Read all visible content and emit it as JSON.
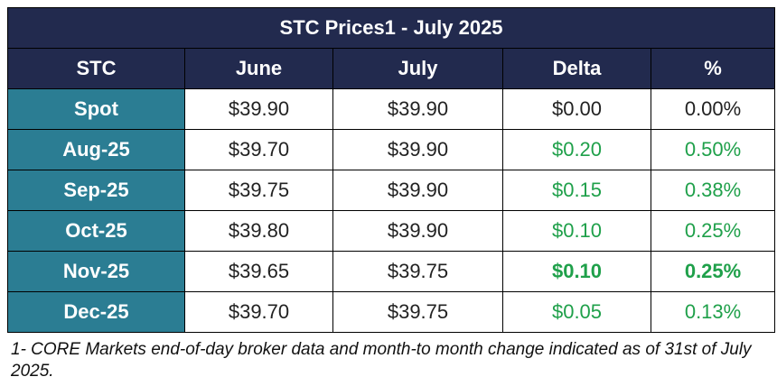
{
  "table": {
    "title": "STC Prices1 - July 2025",
    "headers": [
      "STC",
      "June",
      "July",
      "Delta",
      "%"
    ],
    "rows": [
      {
        "label": "Spot",
        "june": "$39.90",
        "july": "$39.90",
        "delta": "$0.00",
        "pct": "0.00%",
        "style": "neutral"
      },
      {
        "label": "Aug-25",
        "june": "$39.70",
        "july": "$39.90",
        "delta": "$0.20",
        "pct": "0.50%",
        "style": "green"
      },
      {
        "label": "Sep-25",
        "june": "$39.75",
        "july": "$39.90",
        "delta": "$0.15",
        "pct": "0.38%",
        "style": "green"
      },
      {
        "label": "Oct-25",
        "june": "$39.80",
        "july": "$39.90",
        "delta": "$0.10",
        "pct": "0.25%",
        "style": "green"
      },
      {
        "label": "Nov-25",
        "june": "$39.65",
        "july": "$39.75",
        "delta": "$0.10",
        "pct": "0.25%",
        "style": "green-bold"
      },
      {
        "label": "Dec-25",
        "june": "$39.70",
        "july": "$39.75",
        "delta": "$0.05",
        "pct": "0.13%",
        "style": "green"
      }
    ]
  },
  "footnote": "1- CORE Markets end-of-day broker data and month-to month change indicated as of 31st of July 2025.",
  "colors": {
    "header_bg": "#222a4e",
    "label_bg": "#2b7d93",
    "positive": "#1fa04a"
  }
}
